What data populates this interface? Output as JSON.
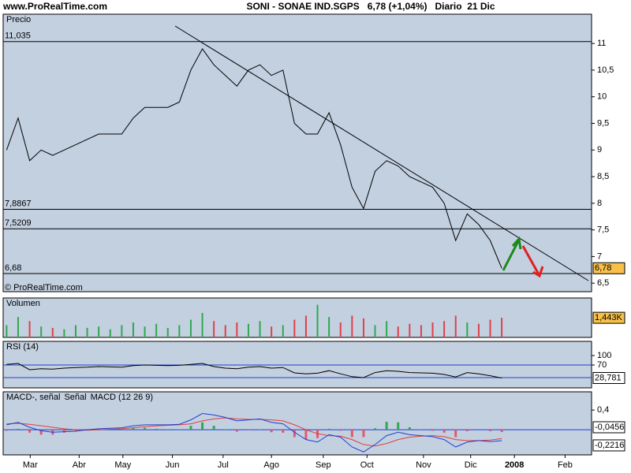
{
  "header": {
    "site": "www.ProRealTime.com",
    "title": "SONI - SONAE IND.SGPS   6,78 (+1,04%)   Diario  21 Dic"
  },
  "chart_data": [
    {
      "type": "line",
      "title": "Precio",
      "watermark": "© ProRealTime.com",
      "color": "#000000",
      "xlim": [
        -0.3,
        50.8
      ],
      "ylim": [
        6.34,
        11.55
      ],
      "yticks": [
        11,
        {
          "value": 10.5,
          "label": "10,5"
        },
        10,
        {
          "value": 9.5,
          "label": "9,5"
        },
        9,
        {
          "value": 8.5,
          "label": "8,5"
        },
        8,
        {
          "value": 7.5,
          "label": "7,5"
        },
        7,
        {
          "value": 6.5,
          "label": "6,5"
        }
      ],
      "levels": [
        {
          "value": 11.035,
          "label": "11,035"
        },
        {
          "value": 7.8867,
          "label": "7,8867"
        },
        {
          "value": 7.5209,
          "label": "7,5209"
        },
        {
          "value": 6.68,
          "label": "6,68"
        }
      ],
      "values": [
        9.0,
        9.6,
        8.8,
        9.0,
        8.9,
        9.0,
        9.1,
        9.2,
        9.3,
        9.3,
        9.3,
        9.6,
        9.8,
        9.8,
        9.8,
        9.9,
        10.5,
        10.9,
        10.6,
        10.4,
        10.2,
        10.5,
        10.6,
        10.4,
        10.5,
        9.5,
        9.3,
        9.3,
        9.7,
        9.1,
        8.3,
        7.9,
        8.6,
        8.8,
        8.7,
        8.5,
        8.4,
        8.3,
        8.0,
        7.3,
        7.8,
        7.6,
        7.3,
        6.78
      ],
      "last_label": "6,78"
    },
    {
      "type": "bar",
      "title": "Volumen",
      "up_color": "#2fa84f",
      "down_color": "#e0404a",
      "xlim": [
        -0.3,
        50.8
      ],
      "ylim": [
        0,
        2900
      ],
      "values": [
        900,
        1500,
        1200,
        800,
        700,
        600,
        900,
        700,
        800,
        600,
        900,
        1100,
        800,
        1000,
        700,
        900,
        1300,
        1800,
        1200,
        900,
        1100,
        1000,
        1200,
        800,
        900,
        1300,
        1600,
        2400,
        1500,
        1100,
        1600,
        1400,
        900,
        1200,
        800,
        1000,
        900,
        1100,
        1200,
        1600,
        1100,
        1000,
        1300,
        1443
      ],
      "last_label": "1,443K"
    },
    {
      "type": "line",
      "title": "RSI (14)",
      "color": "#000000",
      "xlim": [
        -0.3,
        50.8
      ],
      "ylim": [
        -2.5,
        145
      ],
      "yticks": [
        100,
        70
      ],
      "levels": [
        70,
        30
      ],
      "values": [
        72,
        75,
        55,
        58,
        57,
        60,
        62,
        63,
        65,
        64,
        63,
        68,
        70,
        69,
        68,
        69,
        72,
        75,
        65,
        60,
        58,
        63,
        65,
        60,
        62,
        45,
        42,
        44,
        52,
        42,
        33,
        30,
        46,
        52,
        50,
        46,
        45,
        44,
        40,
        32,
        46,
        42,
        36,
        28.781
      ],
      "last_label": "28,781"
    },
    {
      "type": "macd",
      "xlim": [
        -0.3,
        50.8
      ],
      "ylim": [
        -0.51,
        0.77
      ],
      "yticks": [
        {
          "value": 0.4,
          "label": "0,4"
        }
      ],
      "levels": [
        0
      ],
      "xticks": [
        {
          "value": 2.05,
          "label": "Mar"
        },
        {
          "value": 6.3,
          "label": "Abr"
        },
        {
          "value": 10.1,
          "label": "May"
        },
        {
          "value": 14.4,
          "label": "Jun"
        },
        {
          "value": 18.8,
          "label": "Jul"
        },
        {
          "value": 23.0,
          "label": "Ago"
        },
        {
          "value": 27.5,
          "label": "Sep"
        },
        {
          "value": 31.3,
          "label": "Oct"
        },
        {
          "value": 36.2,
          "label": "Nov"
        },
        {
          "value": 40.3,
          "label": "Dic"
        },
        {
          "value": 44.1,
          "label": "2008"
        },
        {
          "value": 48.5,
          "label": "Feb"
        }
      ],
      "series": [
        {
          "name": "MACD-, señal",
          "color": "#e05a6a",
          "up_color": "#2fa84f",
          "values": [
            -0.02,
            0.02,
            -0.06,
            -0.1,
            -0.1,
            -0.06,
            -0.03,
            0.01,
            0.02,
            0.02,
            0.02,
            0.04,
            0.04,
            0.02,
            0.01,
            0.01,
            0.08,
            0.15,
            0.08,
            0.01,
            -0.04,
            -0.01,
            0.01,
            -0.05,
            -0.06,
            -0.15,
            -0.2,
            -0.17,
            0.02,
            -0.02,
            -0.15,
            -0.15,
            0.03,
            0.16,
            0.15,
            0.05,
            0.01,
            -0.02,
            -0.06,
            -0.15,
            -0.03,
            0,
            -0.03,
            -0.0456
          ],
          "last_label": "-0,0456"
        },
        {
          "name": "Señal",
          "color": "#e04040",
          "values": [
            0.12,
            0.13,
            0.11,
            0.08,
            0.05,
            0.02,
            0,
            -0.01,
            0,
            0.01,
            0.02,
            0.04,
            0.06,
            0.08,
            0.09,
            0.1,
            0.12,
            0.18,
            0.22,
            0.24,
            0.22,
            0.21,
            0.21,
            0.2,
            0.18,
            0.1,
            0,
            -0.08,
            -0.12,
            -0.13,
            -0.2,
            -0.3,
            -0.33,
            -0.28,
            -0.2,
            -0.15,
            -0.13,
            -0.12,
            -0.14,
            -0.2,
            -0.22,
            -0.22,
            -0.21,
            -0.18
          ]
        },
        {
          "name": "MACD (12 26 9)",
          "color": "#2040d0",
          "values": [
            0.1,
            0.15,
            0.05,
            -0.02,
            -0.05,
            -0.04,
            -0.03,
            0,
            0.02,
            0.03,
            0.04,
            0.08,
            0.1,
            0.1,
            0.1,
            0.11,
            0.2,
            0.33,
            0.3,
            0.25,
            0.18,
            0.2,
            0.22,
            0.15,
            0.12,
            -0.05,
            -0.2,
            -0.25,
            -0.1,
            -0.15,
            -0.35,
            -0.45,
            -0.3,
            -0.12,
            -0.05,
            -0.1,
            -0.12,
            -0.14,
            -0.2,
            -0.35,
            -0.25,
            -0.22,
            -0.24,
            -0.2216
          ],
          "last_label": "-0,2216"
        }
      ]
    }
  ]
}
